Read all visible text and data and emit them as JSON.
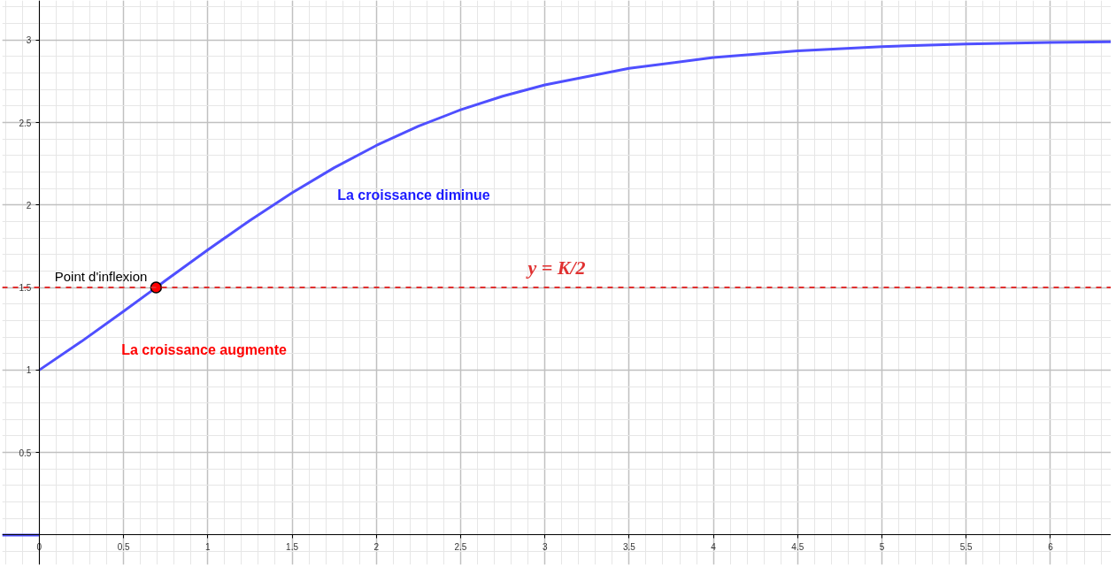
{
  "chart_data": {
    "type": "line",
    "xlim": [
      -0.22,
      6.36
    ],
    "ylim": [
      -0.18,
      3.24
    ],
    "xticks": [
      0,
      0.5,
      1,
      1.5,
      2,
      2.5,
      3,
      3.5,
      4,
      4.5,
      5,
      5.5,
      6
    ],
    "yticks": [
      0.5,
      1,
      1.5,
      2,
      2.5,
      3
    ],
    "grid": true,
    "marker": "none",
    "line_style": "solid",
    "series": [
      {
        "color": "#4f4fff",
        "x": [
          0,
          0.25,
          0.5,
          0.693,
          0.75,
          1,
          1.25,
          1.5,
          1.75,
          2,
          2.25,
          2.5,
          2.75,
          3,
          3.5,
          4,
          4.5,
          5,
          5.5,
          6,
          6.36
        ],
        "values": [
          1,
          1.173,
          1.356,
          1.5,
          1.543,
          1.728,
          1.907,
          2.074,
          2.226,
          2.361,
          2.478,
          2.577,
          2.66,
          2.728,
          2.829,
          2.894,
          2.935,
          2.96,
          2.976,
          2.985,
          2.99
        ]
      },
      {
        "color": "#4f4fff",
        "x": [
          -0.22,
          0
        ],
        "values": [
          0,
          0
        ]
      },
      {
        "type": "scatter",
        "marker": "circle",
        "color": "#ff0000",
        "x": [
          0.693
        ],
        "values": [
          1.5
        ]
      }
    ],
    "ref_lines": [
      {
        "axis": "y",
        "value": 1.5,
        "label": "y = K/2",
        "color": "#e03030",
        "line_style": "dashed"
      }
    ],
    "annotations": [
      {
        "text": "Point d'inflexion",
        "x": 0.693,
        "y": 1.5
      },
      "La croissance diminue",
      "La croissance augmente"
    ]
  }
}
